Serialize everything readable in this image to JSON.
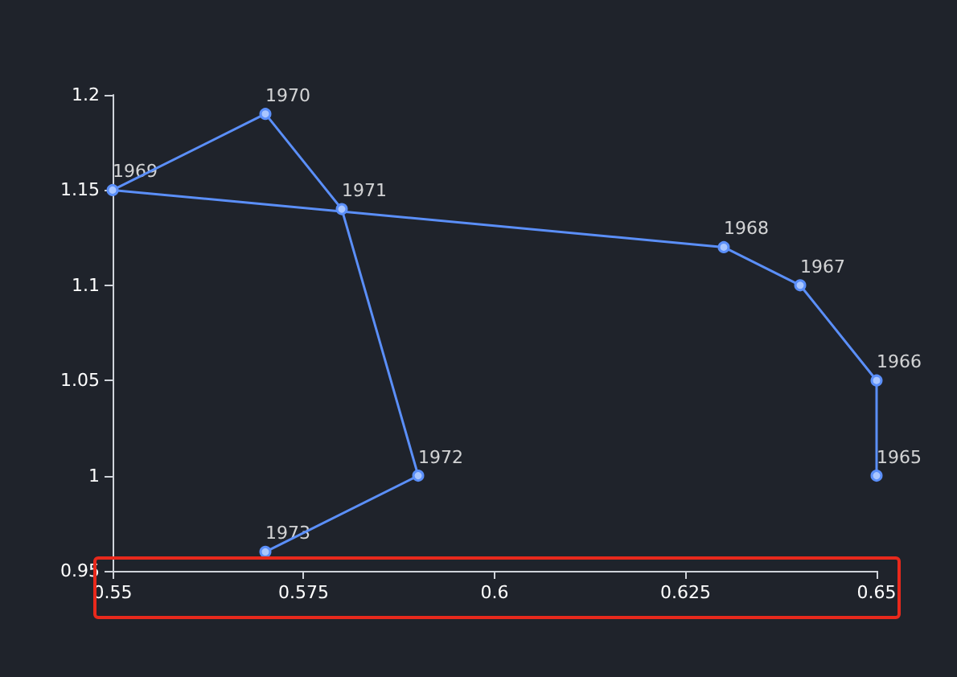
{
  "chart_data": {
    "type": "line",
    "x": [
      0.65,
      0.65,
      0.64,
      0.63,
      0.55,
      0.57,
      0.58,
      0.59,
      0.57
    ],
    "series": [
      {
        "color": "#5b8ff9",
        "values": [
          1.0,
          1.05,
          1.1,
          1.12,
          1.15,
          1.19,
          1.14,
          1.0,
          0.96
        ]
      }
    ],
    "annotations": [
      {
        "text": "1965",
        "x": 0.65,
        "y": 1.0
      },
      {
        "text": "1966",
        "x": 0.65,
        "y": 1.05
      },
      {
        "text": "1967",
        "x": 0.64,
        "y": 1.1
      },
      {
        "text": "1968",
        "x": 0.63,
        "y": 1.12
      },
      {
        "text": "1969",
        "x": 0.55,
        "y": 1.15
      },
      {
        "text": "1970",
        "x": 0.57,
        "y": 1.19
      },
      {
        "text": "1971",
        "x": 0.58,
        "y": 1.14
      },
      {
        "text": "1972",
        "x": 0.59,
        "y": 1.0
      },
      {
        "text": "1973",
        "x": 0.57,
        "y": 0.96
      }
    ],
    "xlim": [
      0.55,
      0.65
    ],
    "xticks": [
      0.55,
      0.575,
      0.6,
      0.625,
      0.65
    ],
    "ylim": [
      0.95,
      1.2
    ],
    "yticks": [
      0.95,
      1,
      1.05,
      1.1,
      1.15,
      1.2
    ],
    "grid": false,
    "marker": "circle",
    "line_style": "solid"
  }
}
